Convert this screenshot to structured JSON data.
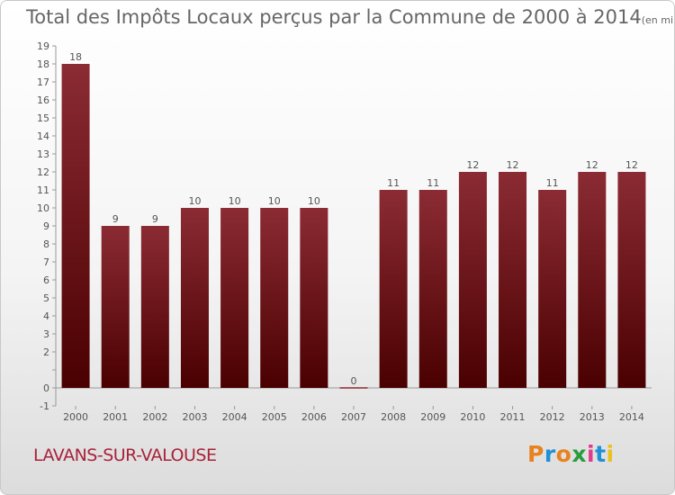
{
  "chart_data": {
    "type": "bar",
    "title": "Total des Impôts Locaux perçus par la Commune de 2000 à 2014",
    "unit": "(en milliers d'€)",
    "categories": [
      "2000",
      "2001",
      "2002",
      "2003",
      "2004",
      "2005",
      "2006",
      "2007",
      "2008",
      "2009",
      "2010",
      "2011",
      "2012",
      "2013",
      "2014"
    ],
    "values": [
      18,
      9,
      9,
      10,
      10,
      10,
      10,
      0,
      11,
      11,
      12,
      12,
      11,
      12,
      12
    ],
    "data_labels": [
      "18",
      "9",
      "9",
      "10",
      "10",
      "10",
      "10",
      "0",
      "11",
      "11",
      "12",
      "12",
      "11",
      "12",
      "12"
    ],
    "yticks": [
      "-1",
      "0",
      "",
      "2",
      "3",
      "4",
      "5",
      "6",
      "7",
      "8",
      "9",
      "10",
      "11",
      "12",
      "13",
      "14",
      "15",
      "16",
      "17",
      "18",
      "19"
    ],
    "ylim": [
      -1,
      19
    ],
    "grid": false,
    "legend": "none",
    "bar_color_top": "#8b2b33",
    "bar_color_bottom": "#4a0000"
  },
  "footer": {
    "commune": "LAVANS-SUR-VALOUSE",
    "logo_letters": [
      "P",
      "r",
      "o",
      "x",
      "i",
      "t",
      "i"
    ],
    "logo_colors": [
      "#e8821e",
      "#1f8fd6",
      "#e8821e",
      "#2a9c3c",
      "#e03c8c",
      "#1f8fd6",
      "#e8c21e"
    ]
  }
}
